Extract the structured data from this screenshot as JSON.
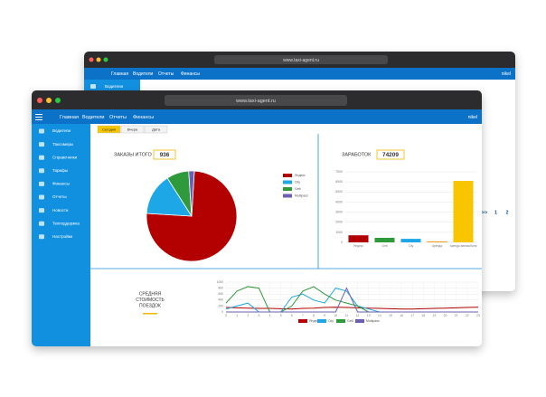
{
  "back_window": {
    "url": "www.taxi-agent.ru",
    "nav": [
      "Главная",
      "Водители",
      "Отчеты",
      "Финансы"
    ],
    "user": "nikel",
    "sidebar": [
      "Водители"
    ],
    "pager": [
      ">>",
      "1",
      "2"
    ]
  },
  "front_window": {
    "url": "www.taxi-agent.ru",
    "nav": [
      "Главная",
      "Водители",
      "Отчеты",
      "Финансы"
    ],
    "user": "nikel",
    "sidebar": [
      "Водители",
      "Таксомеры",
      "Справочники",
      "Тарифы",
      "Финансы",
      "Отчеты",
      "Новости",
      "Техподдержка",
      "Настройки"
    ],
    "tabs": [
      "Сегодня",
      "Вчера",
      "Дата"
    ]
  },
  "chart_data": [
    {
      "type": "pie",
      "title": "ЗАКАЗЫ ИТОГО",
      "total": 936,
      "categories": [
        "Яндекс",
        "City",
        "Gett",
        "Multipass"
      ],
      "values": [
        75,
        15,
        8,
        2
      ],
      "colors": [
        "#b30000",
        "#1ea7e6",
        "#2e9a3c",
        "#6a5fb5"
      ]
    },
    {
      "type": "bar",
      "title": "ЗАРАБОТОК",
      "total": 74209,
      "categories": [
        "Яндекс",
        "Gett",
        "City",
        "Аренда",
        "Аренда автомобиля"
      ],
      "values": [
        700,
        450,
        350,
        100,
        6100
      ],
      "colors": [
        "#b30000",
        "#2e9a3c",
        "#1ea7e6",
        "#f0a020",
        "#f7c600"
      ],
      "ylim": [
        0,
        7000
      ],
      "yticks": [
        0,
        1000,
        2000,
        3000,
        4000,
        5000,
        6000,
        7000
      ],
      "grid": true
    },
    {
      "type": "line",
      "title_lines": [
        "СРЕДНЯЯ",
        "СТОИМОСТЬ",
        "ПОЕЗДОК"
      ],
      "x": [
        0,
        1,
        2,
        3,
        4,
        5,
        6,
        7,
        8,
        9,
        10,
        11,
        12,
        13,
        14,
        15,
        16,
        17,
        18,
        19,
        20,
        21,
        22,
        23
      ],
      "series": [
        {
          "name": "Яндекс",
          "color": "#b30000",
          "values": [
            150,
            140,
            130,
            120,
            120,
            110,
            100,
            120,
            130,
            150,
            160,
            150,
            140,
            130,
            120,
            110,
            100,
            100,
            110,
            120,
            130,
            140,
            150,
            160
          ]
        },
        {
          "name": "City",
          "color": "#1ea7e6",
          "values": [
            100,
            200,
            300,
            0,
            0,
            0,
            500,
            600,
            400,
            300,
            800,
            700,
            200,
            100,
            0,
            0,
            0,
            0,
            0,
            0,
            0,
            0,
            0,
            0
          ]
        },
        {
          "name": "Gett",
          "color": "#2e9a3c",
          "values": [
            300,
            700,
            850,
            800,
            0,
            0,
            200,
            700,
            850,
            600,
            400,
            300,
            200,
            0,
            0,
            0,
            0,
            0,
            0,
            0,
            0,
            0,
            0,
            0
          ]
        },
        {
          "name": "Multipass",
          "color": "#6a5fb5",
          "values": [
            0,
            0,
            0,
            0,
            0,
            0,
            0,
            0,
            0,
            0,
            0,
            800,
            0,
            0,
            0,
            0,
            0,
            0,
            0,
            0,
            0,
            0,
            0,
            0
          ]
        }
      ],
      "ylim": [
        0,
        1000
      ],
      "yticks": [
        0,
        200,
        400,
        600,
        800,
        1000
      ],
      "grid": true
    }
  ]
}
